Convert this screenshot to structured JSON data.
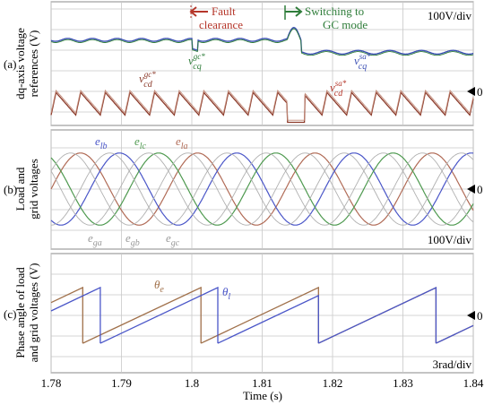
{
  "chart_data": [
    {
      "type": "line",
      "panel_label": "(a)",
      "ylabel": "dq-axis voltage references (V)",
      "scale": "100V/div",
      "zero_marker": "0",
      "annotations": {
        "fault": "Fault clearance",
        "switching": "Switching to GC mode",
        "vcq_gc": {
          "base": "v",
          "sub": "cq",
          "sup": "gc*"
        },
        "vcd_gc": {
          "base": "v",
          "sub": "cd",
          "sup": "gc*"
        },
        "vcq_sa": {
          "base": "v",
          "sub": "cq",
          "sup": "sa*"
        },
        "vcd_sa": {
          "base": "v",
          "sub": "cd",
          "sup": "sa*"
        }
      },
      "x_events": {
        "fault_clearance": 1.8,
        "switching_to_gc": 1.8135
      },
      "series": [
        {
          "key": "vcq",
          "color": "#3c50b4",
          "level_before_divs": 2.5,
          "level_after_divs": 1.9
        },
        {
          "key": "vcd",
          "color": "#8b3a2a",
          "ripple_period_s": 0.0035,
          "ripple_amp_divs": 0.55,
          "level_divs": -0.6
        }
      ],
      "ylim_divs": [
        -1.2,
        3.2
      ]
    },
    {
      "type": "line",
      "panel_label": "(b)",
      "ylabel": "Load and grid voltages",
      "scale": "100V/div",
      "zero_marker": "0",
      "frequency_hz": 60,
      "amplitude_divs": 1.75,
      "series": [
        {
          "name": "e_la",
          "label": {
            "base": "e",
            "sub": "la"
          },
          "color": "#b06a55",
          "phase_deg": 0
        },
        {
          "name": "e_lb",
          "label": {
            "base": "e",
            "sub": "lb"
          },
          "color": "#4a56c8",
          "phase_deg": -120
        },
        {
          "name": "e_lc",
          "label": {
            "base": "e",
            "sub": "lc"
          },
          "color": "#4f9a50",
          "phase_deg": 120
        },
        {
          "name": "e_ga",
          "label": {
            "base": "e",
            "sub": "ga"
          },
          "color": "#b0b0b0",
          "phase_deg": 30
        },
        {
          "name": "e_gb",
          "label": {
            "base": "e",
            "sub": "gb"
          },
          "color": "#b0b0b0",
          "phase_deg": -90
        },
        {
          "name": "e_gc",
          "label": {
            "base": "e",
            "sub": "gc"
          },
          "color": "#b0b0b0",
          "phase_deg": 150
        }
      ],
      "ylim_divs": [
        -2,
        2
      ]
    },
    {
      "type": "line",
      "panel_label": "(c)",
      "ylabel": "Phase angle of load and grid voltages (V)",
      "scale": "3rad/div",
      "zero_marker": "0",
      "series": [
        {
          "name": "theta_e",
          "label": {
            "base": "θ",
            "sub": "e"
          },
          "color": "#a0704a",
          "wraps": [
            1.7845,
            1.8013,
            1.818,
            1.8347
          ]
        },
        {
          "name": "theta_l",
          "label": {
            "base": "θ",
            "sub": "l"
          },
          "color": "#4a56c8",
          "wraps": [
            1.787,
            1.8037,
            1.818,
            1.8347
          ]
        }
      ],
      "ylim_divs": [
        -1.4,
        2.0
      ]
    }
  ],
  "x_axis": {
    "label": "Time (s)",
    "ticks": [
      "1.78",
      "1.79",
      "1.8",
      "1.81",
      "1.82",
      "1.83",
      "1.84"
    ],
    "xlim": [
      1.78,
      1.84
    ]
  }
}
